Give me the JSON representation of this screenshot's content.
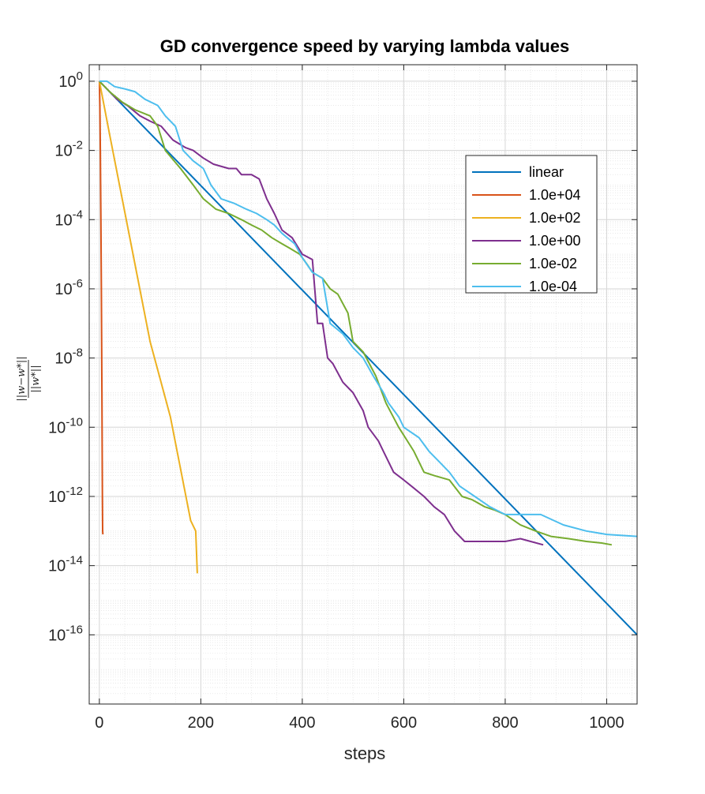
{
  "chart_data": {
    "type": "line",
    "title": "GD convergence speed by varying lambda values",
    "xlabel": "steps",
    "ylabel": {
      "numerator": "||w−w*||",
      "denominator": "||w*||"
    },
    "xlim": [
      -20,
      1060
    ],
    "ylim": [
      1e-18,
      3
    ],
    "yscale": "log",
    "grid": true,
    "minor_grid": true,
    "legend_position": "upper-right",
    "x_ticks": [
      "0",
      "200",
      "400",
      "600",
      "800",
      "1000"
    ],
    "y_ticks": [
      {
        "base": "10",
        "exp": "0"
      },
      {
        "base": "10",
        "exp": "-2"
      },
      {
        "base": "10",
        "exp": "-4"
      },
      {
        "base": "10",
        "exp": "-6"
      },
      {
        "base": "10",
        "exp": "-8"
      },
      {
        "base": "10",
        "exp": "-10"
      },
      {
        "base": "10",
        "exp": "-12"
      },
      {
        "base": "10",
        "exp": "-14"
      },
      {
        "base": "10",
        "exp": "-16"
      }
    ],
    "series": [
      {
        "name": "linear",
        "color": "#0072BD",
        "x": [
          0,
          1060
        ],
        "y": [
          1,
          1e-16
        ]
      },
      {
        "name": "1.0e+04",
        "color": "#D95319",
        "x": [
          0,
          1,
          2,
          3,
          4,
          5,
          6,
          6.5,
          7
        ],
        "y": [
          1,
          0.2,
          0.01,
          0.0001,
          1e-06,
          1e-09,
          1e-12,
          1e-13,
          8e-14
        ]
      },
      {
        "name": "1.0e+02",
        "color": "#EDB120",
        "x": [
          0,
          20,
          60,
          100,
          140,
          180,
          190,
          193
        ],
        "y": [
          1,
          0.03,
          3e-05,
          3e-08,
          2e-10,
          2e-13,
          1e-13,
          6e-15
        ]
      },
      {
        "name": "1.0e+00",
        "color": "#7E2F8E",
        "x": [
          0,
          20,
          35,
          55,
          80,
          100,
          122,
          145,
          170,
          185,
          205,
          225,
          255,
          270,
          280,
          300,
          315,
          330,
          345,
          360,
          380,
          400,
          420,
          430,
          440,
          450,
          460,
          480,
          500,
          520,
          530,
          550,
          560,
          580,
          600,
          615,
          640,
          660,
          680,
          700,
          720,
          750,
          770,
          800,
          830,
          850,
          875
        ],
        "y": [
          1,
          0.5,
          0.3,
          0.2,
          0.1,
          0.07,
          0.05,
          0.02,
          0.012,
          0.01,
          0.006,
          0.004,
          0.003,
          0.003,
          0.002,
          0.002,
          0.0015,
          0.0004,
          0.00015,
          5e-05,
          3e-05,
          1e-05,
          7e-06,
          1e-07,
          1e-07,
          1e-08,
          7e-09,
          2e-09,
          1e-09,
          3e-10,
          1e-10,
          4e-11,
          2e-11,
          5e-12,
          3e-12,
          2e-12,
          1e-12,
          5e-13,
          3e-13,
          1e-13,
          5e-14,
          5e-14,
          5e-14,
          5e-14,
          6e-14,
          5e-14,
          4e-14
        ]
      },
      {
        "name": "1.0e-02",
        "color": "#77AC30",
        "x": [
          0,
          20,
          45,
          70,
          100,
          115,
          130,
          160,
          185,
          205,
          230,
          255,
          280,
          300,
          320,
          340,
          360,
          375,
          395,
          410,
          420,
          440,
          455,
          470,
          490,
          500,
          520,
          545,
          565,
          590,
          620,
          640,
          660,
          690,
          715,
          735,
          760,
          780,
          800,
          830,
          860,
          890,
          925,
          960,
          990,
          1010
        ],
        "y": [
          1,
          0.5,
          0.25,
          0.15,
          0.1,
          0.05,
          0.01,
          0.003,
          0.001,
          0.0004,
          0.0002,
          0.00015,
          0.0001,
          7e-05,
          5e-05,
          3e-05,
          2e-05,
          1.5e-05,
          1e-05,
          5e-06,
          3e-06,
          2e-06,
          1e-06,
          7e-07,
          2e-07,
          3e-08,
          1.5e-08,
          3e-09,
          5e-10,
          1e-10,
          2e-11,
          5e-12,
          4e-12,
          3e-12,
          1e-12,
          8e-13,
          5e-13,
          4e-13,
          3e-13,
          1.5e-13,
          1e-13,
          7e-14,
          6e-14,
          5e-14,
          4.5e-14,
          4e-14
        ]
      },
      {
        "name": "1.0e-04",
        "color": "#4DBEEE",
        "x": [
          0,
          15,
          30,
          50,
          70,
          90,
          115,
          130,
          150,
          165,
          185,
          205,
          220,
          240,
          265,
          290,
          310,
          330,
          345,
          360,
          385,
          400,
          420,
          440,
          455,
          480,
          500,
          520,
          540,
          560,
          570,
          590,
          600,
          630,
          650,
          670,
          690,
          710,
          740,
          770,
          800,
          830,
          870,
          915,
          960,
          1000,
          1060
        ],
        "y": [
          1,
          1,
          0.7,
          0.6,
          0.5,
          0.3,
          0.2,
          0.1,
          0.05,
          0.01,
          0.005,
          0.003,
          0.001,
          0.0004,
          0.0003,
          0.0002,
          0.00015,
          0.0001,
          7e-05,
          4e-05,
          2e-05,
          8e-06,
          3e-06,
          2e-06,
          1e-07,
          5e-08,
          2e-08,
          1e-08,
          3e-09,
          1e-09,
          5e-10,
          2e-10,
          1e-10,
          5e-11,
          2e-11,
          1e-11,
          5e-12,
          2e-12,
          1e-12,
          5e-13,
          3e-13,
          3e-13,
          3e-13,
          1.5e-13,
          1e-13,
          8e-14,
          7e-14
        ]
      }
    ]
  }
}
